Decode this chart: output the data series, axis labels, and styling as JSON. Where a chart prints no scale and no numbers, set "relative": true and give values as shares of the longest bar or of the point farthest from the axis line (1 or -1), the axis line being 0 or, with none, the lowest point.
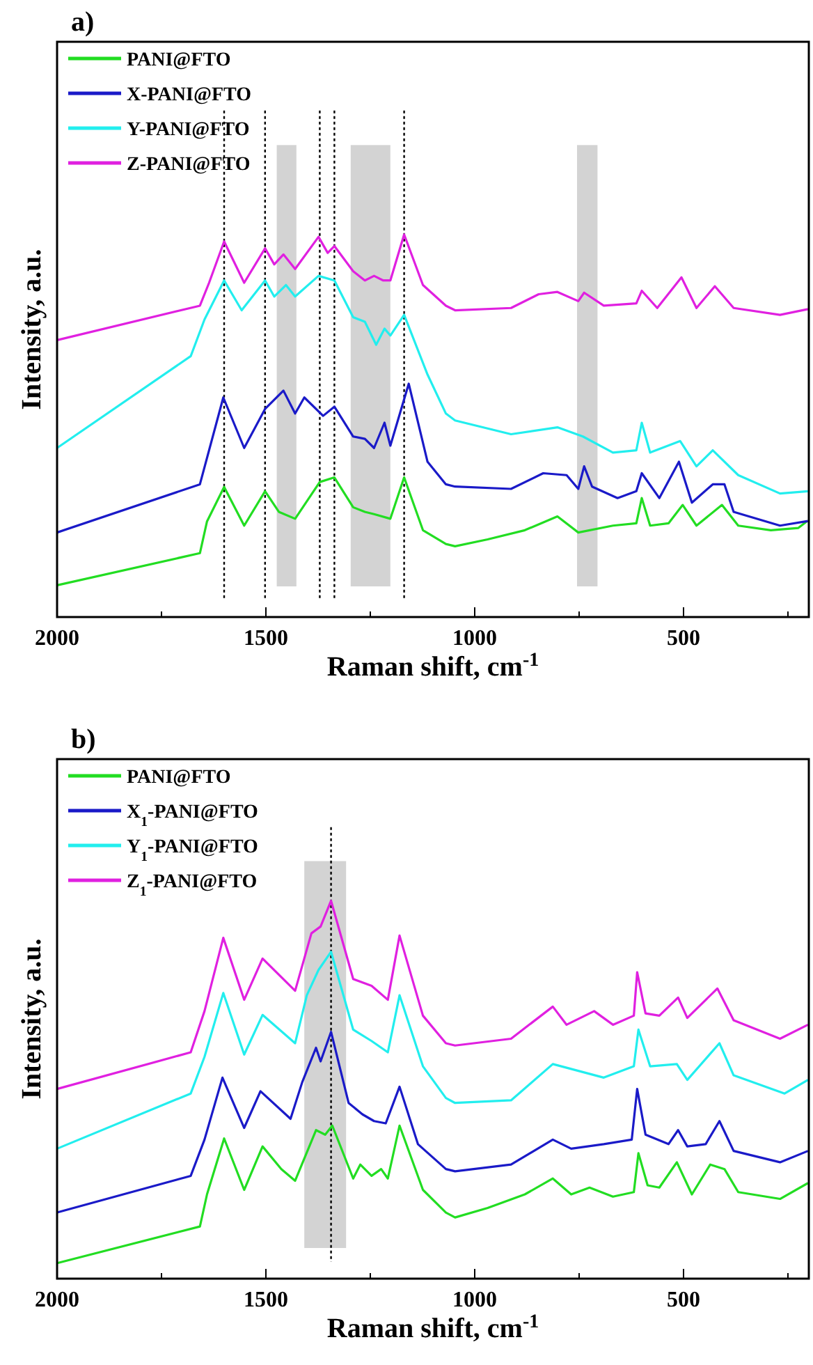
{
  "chart_data": [
    {
      "type": "line",
      "title": "a)",
      "xlabel": "Raman shift, cm$^{-1}$",
      "ylabel": "Intensity, a.u.",
      "relative": true,
      "legend": "top left",
      "xlim": [
        2000,
        200
      ],
      "xticks": [
        2000,
        {
          "value": 1750,
          "label": null
        },
        1500,
        {
          "value": 1250,
          "label": null
        },
        1000,
        {
          "value": 750,
          "label": null
        },
        500,
        {
          "value": 250,
          "label": null
        }
      ],
      "ref_lines": [
        {
          "axis": "x",
          "value": 1600,
          "line_style": "dotted",
          "color": "#000000"
        },
        {
          "axis": "x",
          "value": 1502,
          "line_style": "dotted",
          "color": "#000000"
        },
        {
          "axis": "x",
          "value": 1371,
          "line_style": "dotted",
          "color": "#000000"
        },
        {
          "axis": "x",
          "value": 1336,
          "line_style": "dotted",
          "color": "#000000"
        },
        {
          "axis": "x",
          "value": 1169,
          "line_style": "dotted",
          "color": "#000000"
        }
      ],
      "bands": [
        {
          "axis": "x",
          "from": 1474,
          "to": 1427,
          "color": "#c8c8c8"
        },
        {
          "axis": "x",
          "from": 1297,
          "to": 1202,
          "color": "#c8c8c8"
        },
        {
          "axis": "x",
          "from": 755,
          "to": 706,
          "color": "#c8c8c8"
        }
      ],
      "series": [
        {
          "name": "PANI@FTO",
          "color": "#22dd22",
          "x": [
            2000,
            1658,
            1641,
            1600,
            1552,
            1502,
            1469,
            1430,
            1371,
            1336,
            1291,
            1263,
            1241,
            1202,
            1169,
            1124,
            1069,
            1047,
            969,
            880,
            802,
            752,
            669,
            613,
            600,
            580,
            536,
            502,
            469,
            408,
            369,
            291,
            225,
            205
          ],
          "values": [
            0.083,
            0.167,
            0.25,
            0.34,
            0.239,
            0.329,
            0.275,
            0.257,
            0.353,
            0.365,
            0.287,
            0.275,
            0.269,
            0.257,
            0.365,
            0.227,
            0.191,
            0.185,
            0.203,
            0.227,
            0.263,
            0.221,
            0.239,
            0.245,
            0.311,
            0.239,
            0.245,
            0.293,
            0.239,
            0.293,
            0.239,
            0.227,
            0.233,
            0.25
          ]
        },
        {
          "name": "X-PANI@FTO",
          "color": "#1a1ac8",
          "x": [
            2000,
            1658,
            1602,
            1552,
            1502,
            1458,
            1430,
            1408,
            1363,
            1336,
            1291,
            1263,
            1241,
            1216,
            1202,
            1158,
            1113,
            1069,
            1047,
            913,
            836,
            780,
            752,
            738,
            719,
            658,
            613,
            600,
            558,
            511,
            480,
            430,
            402,
            380,
            269,
            202
          ],
          "values": [
            0.221,
            0.347,
            0.574,
            0.442,
            0.544,
            0.592,
            0.532,
            0.574,
            0.526,
            0.55,
            0.472,
            0.466,
            0.442,
            0.508,
            0.448,
            0.61,
            0.406,
            0.347,
            0.341,
            0.335,
            0.376,
            0.371,
            0.335,
            0.394,
            0.341,
            0.311,
            0.329,
            0.376,
            0.311,
            0.406,
            0.299,
            0.347,
            0.347,
            0.275,
            0.239,
            0.251
          ]
        },
        {
          "name": "Y-PANI@FTO",
          "color": "#22eeee",
          "x": [
            2000,
            1680,
            1647,
            1600,
            1558,
            1502,
            1480,
            1452,
            1430,
            1374,
            1336,
            1291,
            1263,
            1236,
            1216,
            1202,
            1169,
            1113,
            1069,
            1047,
            913,
            802,
            741,
            669,
            613,
            600,
            580,
            508,
            469,
            430,
            369,
            269,
            202
          ],
          "values": [
            0.442,
            0.682,
            0.778,
            0.88,
            0.802,
            0.88,
            0.838,
            0.868,
            0.838,
            0.892,
            0.88,
            0.784,
            0.772,
            0.712,
            0.754,
            0.736,
            0.79,
            0.634,
            0.532,
            0.514,
            0.478,
            0.496,
            0.472,
            0.43,
            0.436,
            0.508,
            0.43,
            0.46,
            0.394,
            0.436,
            0.371,
            0.323,
            0.329
          ]
        },
        {
          "name": "Z-PANI@FTO",
          "color": "#e020e0",
          "x": [
            2000,
            1658,
            1636,
            1600,
            1552,
            1502,
            1480,
            1458,
            1430,
            1374,
            1352,
            1336,
            1291,
            1263,
            1241,
            1219,
            1202,
            1169,
            1124,
            1069,
            1047,
            913,
            847,
            802,
            752,
            738,
            691,
            613,
            600,
            563,
            505,
            469,
            425,
            380,
            269,
            202
          ],
          "values": [
            0.724,
            0.814,
            0.874,
            0.982,
            0.874,
            0.964,
            0.922,
            0.948,
            0.91,
            0.994,
            0.952,
            0.97,
            0.904,
            0.88,
            0.892,
            0.88,
            0.88,
            1,
            0.868,
            0.814,
            0.802,
            0.808,
            0.844,
            0.85,
            0.826,
            0.848,
            0.814,
            0.82,
            0.853,
            0.808,
            0.888,
            0.808,
            0.865,
            0.808,
            0.79,
            0.805
          ]
        }
      ]
    },
    {
      "type": "line",
      "title": "b)",
      "xlabel": "Raman shift, cm$^{-1}$",
      "ylabel": "Intensity, a.u.",
      "relative": true,
      "legend": "top left",
      "xlim": [
        2000,
        200
      ],
      "xticks": [
        2000,
        {
          "value": 1750,
          "label": null
        },
        1500,
        {
          "value": 1250,
          "label": null
        },
        1000,
        {
          "value": 750,
          "label": null
        },
        500,
        {
          "value": 250,
          "label": null
        }
      ],
      "ref_lines": [
        {
          "axis": "x",
          "value": 1344,
          "line_style": "dotted",
          "color": "#000000"
        }
      ],
      "bands": [
        {
          "axis": "x",
          "from": 1408,
          "to": 1308,
          "color": "#c8c8c8"
        }
      ],
      "series": [
        {
          "name": "PANI@FTO",
          "color": "#22dd22",
          "x": [
            2000,
            1658,
            1641,
            1600,
            1552,
            1508,
            1463,
            1430,
            1380,
            1358,
            1341,
            1291,
            1274,
            1247,
            1224,
            1208,
            1180,
            1124,
            1069,
            1047,
            969,
            880,
            813,
            769,
            725,
            669,
            619,
            608,
            586,
            558,
            516,
            480,
            436,
            402,
            369,
            269,
            202
          ],
          "values": [
            0.041,
            0.138,
            0.223,
            0.371,
            0.235,
            0.35,
            0.29,
            0.259,
            0.393,
            0.381,
            0.405,
            0.265,
            0.302,
            0.272,
            0.29,
            0.265,
            0.405,
            0.235,
            0.175,
            0.162,
            0.187,
            0.223,
            0.265,
            0.223,
            0.241,
            0.217,
            0.229,
            0.332,
            0.247,
            0.241,
            0.308,
            0.223,
            0.302,
            0.29,
            0.229,
            0.211,
            0.253
          ]
        },
        {
          "name": "X$_{1}$-PANI@FTO",
          "color": "#1a1ac8",
          "x": [
            2000,
            1680,
            1647,
            1604,
            1552,
            1513,
            1441,
            1413,
            1380,
            1369,
            1344,
            1302,
            1269,
            1241,
            1213,
            1180,
            1136,
            1069,
            1047,
            913,
            813,
            769,
            691,
            624,
            611,
            591,
            536,
            513,
            491,
            447,
            414,
            380,
            269,
            202
          ],
          "values": [
            0.175,
            0.272,
            0.368,
            0.532,
            0.399,
            0.496,
            0.423,
            0.52,
            0.611,
            0.575,
            0.653,
            0.465,
            0.435,
            0.417,
            0.411,
            0.508,
            0.356,
            0.29,
            0.284,
            0.302,
            0.368,
            0.344,
            0.356,
            0.368,
            0.502,
            0.381,
            0.356,
            0.393,
            0.35,
            0.356,
            0.417,
            0.338,
            0.308,
            0.338
          ]
        },
        {
          "name": "Y$_{1}$-PANI@FTO",
          "color": "#22eeee",
          "x": [
            2000,
            1680,
            1647,
            1602,
            1552,
            1508,
            1430,
            1402,
            1374,
            1344,
            1291,
            1247,
            1208,
            1180,
            1124,
            1069,
            1047,
            913,
            813,
            691,
            619,
            608,
            580,
            516,
            491,
            414,
            380,
            258,
            202
          ],
          "values": [
            0.344,
            0.49,
            0.587,
            0.756,
            0.593,
            0.698,
            0.623,
            0.75,
            0.817,
            0.865,
            0.659,
            0.629,
            0.599,
            0.75,
            0.562,
            0.478,
            0.465,
            0.472,
            0.568,
            0.532,
            0.562,
            0.659,
            0.562,
            0.568,
            0.526,
            0.623,
            0.538,
            0.49,
            0.526
          ]
        },
        {
          "name": "Z$_{1}$-PANI@FTO",
          "color": "#e020e0",
          "x": [
            2000,
            1680,
            1647,
            1602,
            1552,
            1508,
            1430,
            1391,
            1369,
            1344,
            1291,
            1247,
            1208,
            1180,
            1124,
            1069,
            1047,
            913,
            813,
            780,
            714,
            669,
            619,
            611,
            591,
            558,
            513,
            491,
            419,
            380,
            269,
            202
          ],
          "values": [
            0.502,
            0.599,
            0.708,
            0.902,
            0.738,
            0.847,
            0.762,
            0.914,
            0.932,
            1,
            0.793,
            0.775,
            0.738,
            0.908,
            0.696,
            0.623,
            0.617,
            0.635,
            0.72,
            0.672,
            0.708,
            0.672,
            0.696,
            0.811,
            0.702,
            0.696,
            0.744,
            0.69,
            0.768,
            0.684,
            0.635,
            0.672
          ]
        }
      ]
    }
  ]
}
